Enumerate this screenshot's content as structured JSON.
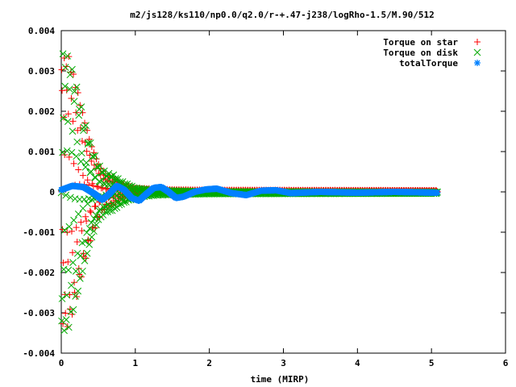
{
  "chart_data": {
    "type": "scatter",
    "title": "m2/js128/ks110/np0.0/q2.0/r-+.47-j238/logRho-1.5/M.90/512",
    "xlabel": "time (MIRP)",
    "ylabel": "",
    "xlim": [
      0,
      6
    ],
    "ylim": [
      -0.004,
      0.004
    ],
    "x_ticks": [
      "0",
      "1",
      "2",
      "3",
      "4",
      "5",
      "6"
    ],
    "y_ticks": [
      "-0.004",
      "-0.003",
      "-0.002",
      "-0.001",
      "0",
      "0.001",
      "0.002",
      "0.003",
      "0.004"
    ],
    "grid": false,
    "legend_position": "top-right",
    "series": [
      {
        "name": "Torque on star",
        "color": "#ff0000",
        "marker": "plus",
        "amplitude_envelope": [
          [
            0.0,
            0.0033
          ],
          [
            0.1,
            0.0034
          ],
          [
            0.2,
            0.0027
          ],
          [
            0.3,
            0.0019
          ],
          [
            0.4,
            0.0012
          ],
          [
            0.5,
            0.0007
          ],
          [
            0.6,
            0.0004
          ],
          [
            0.7,
            0.00035
          ],
          [
            0.8,
            0.0002
          ],
          [
            1.0,
            8e-05
          ],
          [
            1.5,
            4e-05
          ],
          [
            2.0,
            3e-05
          ],
          [
            5.1,
            2e-05
          ]
        ],
        "offset": 2e-05
      },
      {
        "name": "Torque on disk",
        "color": "#00aa00",
        "marker": "cross",
        "amplitude_envelope": [
          [
            0.0,
            0.0035
          ],
          [
            0.1,
            0.0034
          ],
          [
            0.2,
            0.0027
          ],
          [
            0.3,
            0.0019
          ],
          [
            0.4,
            0.0012
          ],
          [
            0.5,
            0.0007
          ],
          [
            0.6,
            0.0005
          ],
          [
            0.7,
            0.00045
          ],
          [
            0.8,
            0.0003
          ],
          [
            1.0,
            0.00012
          ],
          [
            1.3,
            6e-05
          ],
          [
            2.0,
            3e-05
          ],
          [
            5.1,
            2e-05
          ]
        ],
        "offset": -2e-05
      },
      {
        "name": "totalTorque",
        "color": "#0080ff",
        "marker": "star",
        "points": [
          [
            0.0,
            5e-05
          ],
          [
            0.15,
            0.00015
          ],
          [
            0.3,
            0.00012
          ],
          [
            0.45,
            -5e-05
          ],
          [
            0.55,
            -0.0002
          ],
          [
            0.65,
            -5e-05
          ],
          [
            0.75,
            0.00015
          ],
          [
            0.85,
            5e-05
          ],
          [
            0.95,
            -0.00015
          ],
          [
            1.05,
            -0.00022
          ],
          [
            1.15,
            -5e-05
          ],
          [
            1.25,
            0.0001
          ],
          [
            1.35,
            0.00012
          ],
          [
            1.45,
            0.0
          ],
          [
            1.55,
            -0.00015
          ],
          [
            1.65,
            -0.00012
          ],
          [
            1.8,
            0.0
          ],
          [
            1.95,
            6e-05
          ],
          [
            2.1,
            8e-05
          ],
          [
            2.3,
            -3e-05
          ],
          [
            2.5,
            -8e-05
          ],
          [
            2.7,
            3e-05
          ],
          [
            2.9,
            4e-05
          ],
          [
            3.1,
            -3e-05
          ],
          [
            3.5,
            0.0
          ],
          [
            4.0,
            -2e-05
          ],
          [
            4.5,
            0.0
          ],
          [
            5.07,
            -2e-05
          ]
        ]
      }
    ]
  }
}
